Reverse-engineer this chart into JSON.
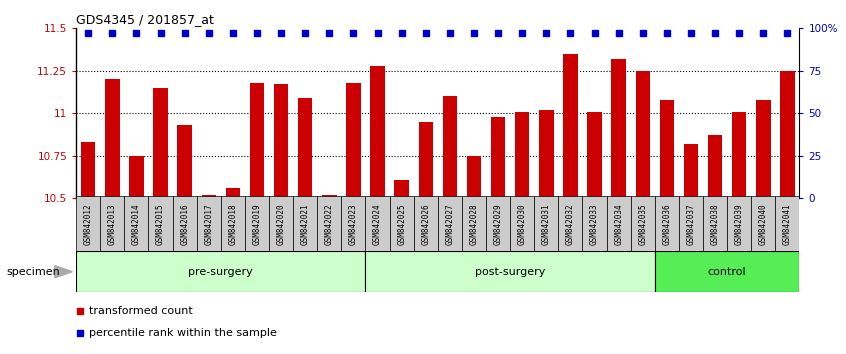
{
  "title": "GDS4345 / 201857_at",
  "samples": [
    "GSM842012",
    "GSM842013",
    "GSM842014",
    "GSM842015",
    "GSM842016",
    "GSM842017",
    "GSM842018",
    "GSM842019",
    "GSM842020",
    "GSM842021",
    "GSM842022",
    "GSM842023",
    "GSM842024",
    "GSM842025",
    "GSM842026",
    "GSM842027",
    "GSM842028",
    "GSM842029",
    "GSM842030",
    "GSM842031",
    "GSM842032",
    "GSM842033",
    "GSM842034",
    "GSM842035",
    "GSM842036",
    "GSM842037",
    "GSM842038",
    "GSM842039",
    "GSM842040",
    "GSM842041"
  ],
  "bar_values": [
    10.83,
    11.2,
    10.75,
    11.15,
    10.93,
    10.52,
    10.56,
    11.18,
    11.17,
    11.09,
    10.52,
    11.18,
    11.28,
    10.61,
    10.95,
    11.1,
    10.75,
    10.98,
    11.01,
    11.02,
    11.35,
    11.01,
    11.32,
    11.25,
    11.08,
    10.82,
    10.87,
    11.01,
    11.08,
    11.25
  ],
  "percentile_values": [
    97,
    97,
    97,
    97,
    97,
    97,
    97,
    97,
    97,
    97,
    97,
    97,
    97,
    97,
    97,
    97,
    97,
    97,
    97,
    97,
    97,
    97,
    97,
    97,
    97,
    97,
    97,
    97,
    97,
    97
  ],
  "groups": [
    {
      "label": "pre-surgery",
      "start": 0,
      "end": 12,
      "color": "#ccffcc"
    },
    {
      "label": "post-surgery",
      "start": 12,
      "end": 24,
      "color": "#ccffcc"
    },
    {
      "label": "control",
      "start": 24,
      "end": 30,
      "color": "#55ee55"
    }
  ],
  "ylim_left": [
    10.5,
    11.5
  ],
  "ylim_right": [
    0,
    100
  ],
  "bar_color": "#CC0000",
  "dot_color": "#0000CC",
  "background_color": "#ffffff",
  "specimen_label": "specimen",
  "legend_bar": "transformed count",
  "legend_dot": "percentile rank within the sample",
  "yticks_left": [
    10.5,
    10.75,
    11.0,
    11.25,
    11.5
  ],
  "ytick_labels_left": [
    "10.5",
    "10.75",
    "11",
    "11.25",
    "11.5"
  ],
  "yticks_right": [
    0,
    25,
    50,
    75,
    100
  ],
  "ytick_labels_right": [
    "0",
    "25",
    "50",
    "75",
    "100%"
  ]
}
